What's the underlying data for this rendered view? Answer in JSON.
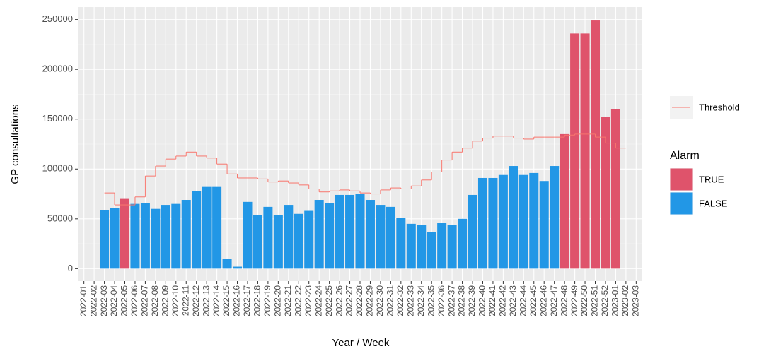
{
  "chart_data": {
    "type": "bar",
    "x_label": "Year / Week",
    "y_label": "GP consultations",
    "legend_title": "Alarm",
    "categories": [
      "2022-01",
      "2022-02",
      "2022-03",
      "2022-04",
      "2022-05",
      "2022-06",
      "2022-07",
      "2022-08",
      "2022-09",
      "2022-10",
      "2022-11",
      "2022-12",
      "2022-13",
      "2022-14",
      "2022-15",
      "2022-16",
      "2022-17",
      "2022-18",
      "2022-19",
      "2022-20",
      "2022-21",
      "2022-22",
      "2022-23",
      "2022-24",
      "2022-25",
      "2022-26",
      "2022-27",
      "2022-28",
      "2022-29",
      "2022-30",
      "2022-31",
      "2022-32",
      "2022-33",
      "2022-34",
      "2022-35",
      "2022-36",
      "2022-37",
      "2022-38",
      "2022-39",
      "2022-40",
      "2022-41",
      "2022-42",
      "2022-43",
      "2022-44",
      "2022-45",
      "2022-46",
      "2022-47",
      "2022-48",
      "2022-49",
      "2022-50",
      "2022-51",
      "2022-52",
      "2023-01",
      "2023-02",
      "2023-03"
    ],
    "series": [
      {
        "name": "TRUE",
        "color": "#df536b",
        "values": [
          null,
          null,
          null,
          null,
          70000,
          null,
          null,
          null,
          null,
          null,
          null,
          null,
          null,
          null,
          null,
          null,
          null,
          null,
          null,
          null,
          null,
          null,
          null,
          null,
          null,
          null,
          null,
          null,
          null,
          null,
          null,
          null,
          null,
          null,
          null,
          null,
          null,
          null,
          null,
          null,
          null,
          null,
          null,
          null,
          null,
          null,
          null,
          135000,
          236000,
          236000,
          249000,
          152000,
          160000,
          null,
          null
        ]
      },
      {
        "name": "FALSE",
        "color": "#2297e6",
        "values": [
          null,
          null,
          59000,
          61000,
          null,
          65000,
          66000,
          60000,
          64000,
          65000,
          69000,
          78000,
          82000,
          82000,
          10000,
          2000,
          67000,
          54000,
          62000,
          54000,
          64000,
          55000,
          58000,
          69000,
          66000,
          74000,
          74000,
          75000,
          69000,
          64000,
          62000,
          51000,
          45000,
          44000,
          37000,
          46000,
          44000,
          50000,
          74000,
          91000,
          91000,
          94000,
          103000,
          94000,
          96000,
          88000,
          103000,
          null,
          null,
          null,
          null,
          null,
          null,
          null,
          null
        ]
      },
      {
        "name": "Threshold",
        "type": "step",
        "color": "#f8766d",
        "values": [
          null,
          null,
          76000,
          64000,
          64000,
          72000,
          93000,
          103000,
          110000,
          113000,
          117000,
          113000,
          111000,
          105000,
          95000,
          91000,
          91000,
          90000,
          87000,
          88000,
          86000,
          84000,
          80000,
          77000,
          78000,
          79000,
          78000,
          76000,
          75000,
          79000,
          81000,
          80000,
          83000,
          89000,
          97000,
          109000,
          117000,
          121000,
          128000,
          131000,
          133000,
          133000,
          131000,
          130000,
          132000,
          132000,
          132000,
          134000,
          135000,
          135000,
          132000,
          126000,
          121000,
          null,
          null
        ]
      }
    ],
    "ylim": [
      -12500,
      262500
    ],
    "yticks": [
      0,
      50000,
      100000,
      150000,
      200000,
      250000
    ],
    "grid": true
  }
}
